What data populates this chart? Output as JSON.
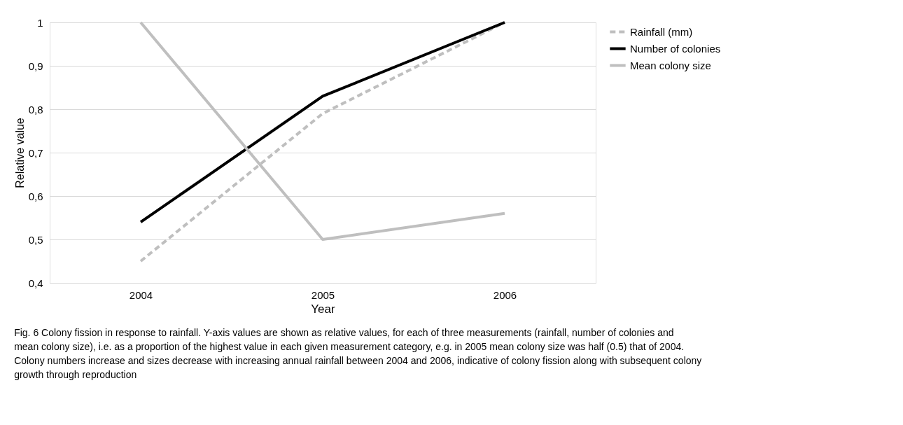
{
  "chart_data": {
    "type": "line",
    "categories": [
      "2004",
      "2005",
      "2006"
    ],
    "series": [
      {
        "name": "Rainfall (mm)",
        "color": "#bfbfbf",
        "line_style": "dashed",
        "values": [
          0.45,
          0.79,
          1.0
        ]
      },
      {
        "name": "Number of colonies",
        "color": "#000000",
        "line_style": "solid",
        "values": [
          0.54,
          0.83,
          1.0
        ]
      },
      {
        "name": "Mean colony size",
        "color": "#bfbfbf",
        "line_style": "solid",
        "values": [
          1.0,
          0.5,
          0.56
        ]
      }
    ],
    "xlabel": "Year",
    "ylabel": "Relative value",
    "ylim": [
      0.4,
      1.0
    ],
    "yticks": [
      {
        "value": 0.4,
        "label": "0,4"
      },
      {
        "value": 0.5,
        "label": "0,5"
      },
      {
        "value": 0.6,
        "label": "0,6"
      },
      {
        "value": 0.7,
        "label": "0,7"
      },
      {
        "value": 0.8,
        "label": "0,8"
      },
      {
        "value": 0.9,
        "label": "0,9"
      },
      {
        "value": 1.0,
        "label": "1"
      }
    ],
    "grid": "y",
    "legend": "right",
    "marker": "none",
    "annotations": [
      "Fig. 6  Colony fission in response to rainfall. Y-axis values are shown as relative values, for each of three measurements (rainfall, number of colonies and mean colony size), i.e. as a proportion of the highest value in each given measurement category, e.g. in 2005 mean colony size was half (0.5) that of 2004. Colony numbers increase and sizes decrease with increasing annual rainfall between 2004 and 2006, indicative of colony fission along with subsequent colony growth through reproduction"
    ]
  }
}
